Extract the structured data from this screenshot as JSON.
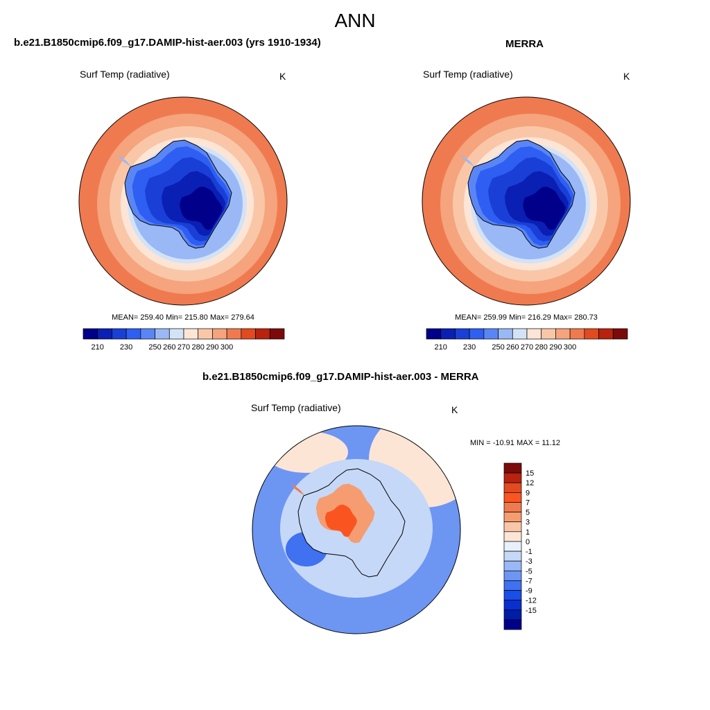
{
  "suptitle": "ANN",
  "palette": {
    "abs_fills": [
      "#00008a",
      "#0a1fb4",
      "#1a3fd6",
      "#2e5ff2",
      "#5a86f5",
      "#9ab8f5",
      "#d3e3f7",
      "#fde5d6",
      "#f9c7a8",
      "#f5a47d",
      "#f07a4f",
      "#e24a1f",
      "#b8220e",
      "#7c0a0a"
    ],
    "diff_fills": [
      "#7c0a0a",
      "#b8220e",
      "#e24a1f",
      "#fa5520",
      "#f07a4f",
      "#f59d70",
      "#f9c7a8",
      "#fde5d6",
      "#e8f0fb",
      "#c5d8f7",
      "#9ab8f5",
      "#6d96f3",
      "#3f71f0",
      "#1a4ee8",
      "#0a2fd0",
      "#001da8",
      "#00008a"
    ],
    "coast": "#000000"
  },
  "panels": [
    {
      "title": "b.e21.B1850cmip6.f09_g17.DAMIP-hist-aer.003 (yrs 1910-1934)",
      "varname": "Surf Temp (radiative)",
      "units": "K",
      "stats": "MEAN= 259.40  Min= 215.80  Max= 279.64"
    },
    {
      "title": "MERRA",
      "varname": "Surf Temp (radiative)",
      "units": "K",
      "stats": "MEAN= 259.99  Min= 216.29  Max= 280.73"
    },
    {
      "title": "b.e21.B1850cmip6.f09_g17.DAMIP-hist-aer.003 - MERRA",
      "varname": "Surf Temp (radiative)",
      "units": "K",
      "stats": "MIN = -10.91 MAX =  11.12"
    }
  ],
  "chart_data": [
    {
      "type": "heatmap",
      "projection": "south polar stereographic",
      "title": "b.e21.B1850cmip6.f09_g17.DAMIP-hist-aer.003 (yrs 1910-1934)",
      "variable": "Surf Temp (radiative)",
      "units": "K",
      "mean": 259.4,
      "min": 215.8,
      "max": 279.64,
      "colorbar_ticks": [
        210,
        230,
        250,
        260,
        270,
        280,
        290,
        300
      ],
      "colorbar_bins": 14
    },
    {
      "type": "heatmap",
      "projection": "south polar stereographic",
      "title": "MERRA",
      "variable": "Surf Temp (radiative)",
      "units": "K",
      "mean": 259.99,
      "min": 216.29,
      "max": 280.73,
      "colorbar_ticks": [
        210,
        230,
        250,
        260,
        270,
        280,
        290,
        300
      ],
      "colorbar_bins": 14
    },
    {
      "type": "heatmap",
      "projection": "south polar stereographic",
      "title": "b.e21.B1850cmip6.f09_g17.DAMIP-hist-aer.003 - MERRA",
      "variable": "Surf Temp (radiative)",
      "units": "K",
      "min": -10.91,
      "max": 11.12,
      "colorbar_ticks": [
        15,
        12,
        9,
        7,
        5,
        3,
        1,
        0,
        -1,
        -3,
        -5,
        -7,
        -9,
        -12,
        -15
      ],
      "colorbar_bins": 17
    }
  ]
}
